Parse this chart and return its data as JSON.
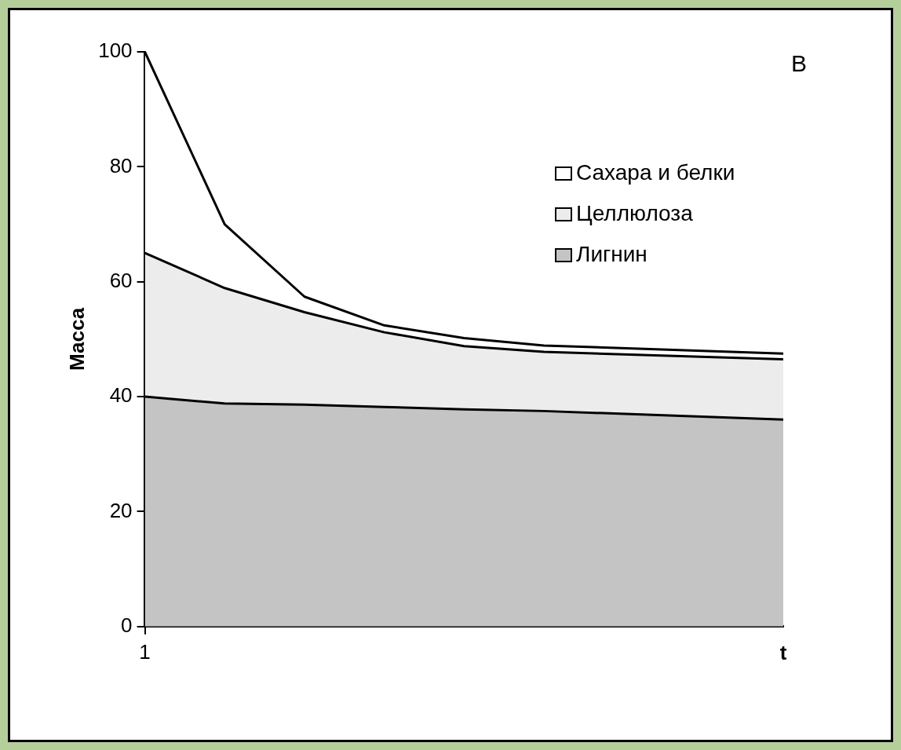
{
  "chart_data": {
    "type": "area",
    "stacked": true,
    "xlabel": "t",
    "ylabel": "Масса",
    "categories": [
      "1",
      null,
      null,
      null,
      null,
      null,
      null,
      null,
      null
    ],
    "series": [
      {
        "name": "Лигнин",
        "color": "#c4c4c4",
        "values": [
          40,
          38.8,
          38.6,
          38.2,
          37.8,
          37.5,
          null,
          null,
          36
        ]
      },
      {
        "name": "Целлюлоза",
        "color": "#ececec",
        "values": [
          25,
          20.1,
          16.1,
          13,
          11,
          10.3,
          null,
          null,
          10.5
        ]
      },
      {
        "name": "Сахара и белки",
        "color": "#ffffff",
        "values": [
          35,
          11.1,
          2.7,
          1.2,
          1.4,
          1.1,
          null,
          null,
          1
        ]
      }
    ],
    "ylim": [
      0,
      100
    ],
    "yticks": [
      0,
      20,
      40,
      60,
      80,
      100
    ],
    "grid": false,
    "legend": "top right",
    "annotations": [
      "В"
    ]
  }
}
